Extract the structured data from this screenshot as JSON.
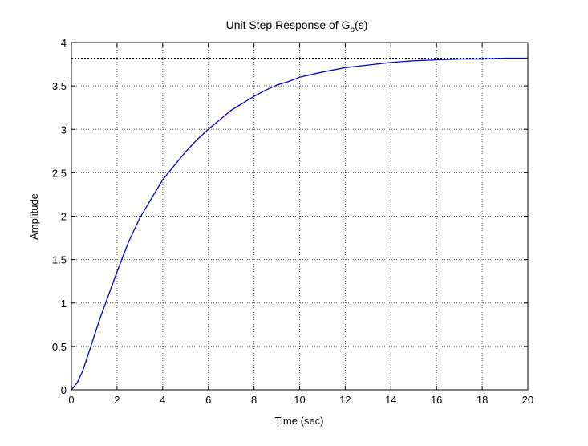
{
  "chart_data": {
    "type": "line",
    "title": "Unit Step Response of G",
    "title_subscript": "b",
    "title_suffix": "(s)",
    "xlabel": "Time (sec)",
    "ylabel": "Amplitude",
    "xlim": [
      0,
      20
    ],
    "ylim": [
      0,
      4
    ],
    "grid": true,
    "x_ticks": [
      "0",
      "2",
      "4",
      "6",
      "8",
      "10",
      "12",
      "14",
      "16",
      "18",
      "20"
    ],
    "y_ticks": [
      "0",
      "0.5",
      "1",
      "1.5",
      "2",
      "2.5",
      "3",
      "3.5",
      "4"
    ],
    "colors": {
      "series": "#0000cc",
      "reference": "#000000",
      "grid": "#555555"
    },
    "reference_line": {
      "y": 3.82,
      "style": "dotted"
    },
    "series": [
      {
        "x": [
          0,
          0.25,
          0.5,
          0.75,
          1.0,
          1.25,
          1.5,
          1.75,
          2.0,
          2.5,
          3.0,
          3.5,
          4.0,
          4.5,
          5.0,
          5.5,
          6.0,
          6.5,
          7.0,
          7.5,
          8.0,
          8.5,
          9.0,
          9.5,
          10.0,
          11.0,
          12.0,
          13.0,
          14.0,
          15.0,
          16.0,
          17.0,
          18.0,
          19.0,
          20.0
        ],
        "values": [
          0,
          0.08,
          0.22,
          0.42,
          0.62,
          0.82,
          1.0,
          1.18,
          1.36,
          1.7,
          1.98,
          2.2,
          2.42,
          2.58,
          2.74,
          2.88,
          3.0,
          3.11,
          3.22,
          3.3,
          3.38,
          3.45,
          3.51,
          3.55,
          3.6,
          3.66,
          3.71,
          3.74,
          3.77,
          3.79,
          3.8,
          3.81,
          3.81,
          3.82,
          3.82
        ]
      }
    ]
  }
}
